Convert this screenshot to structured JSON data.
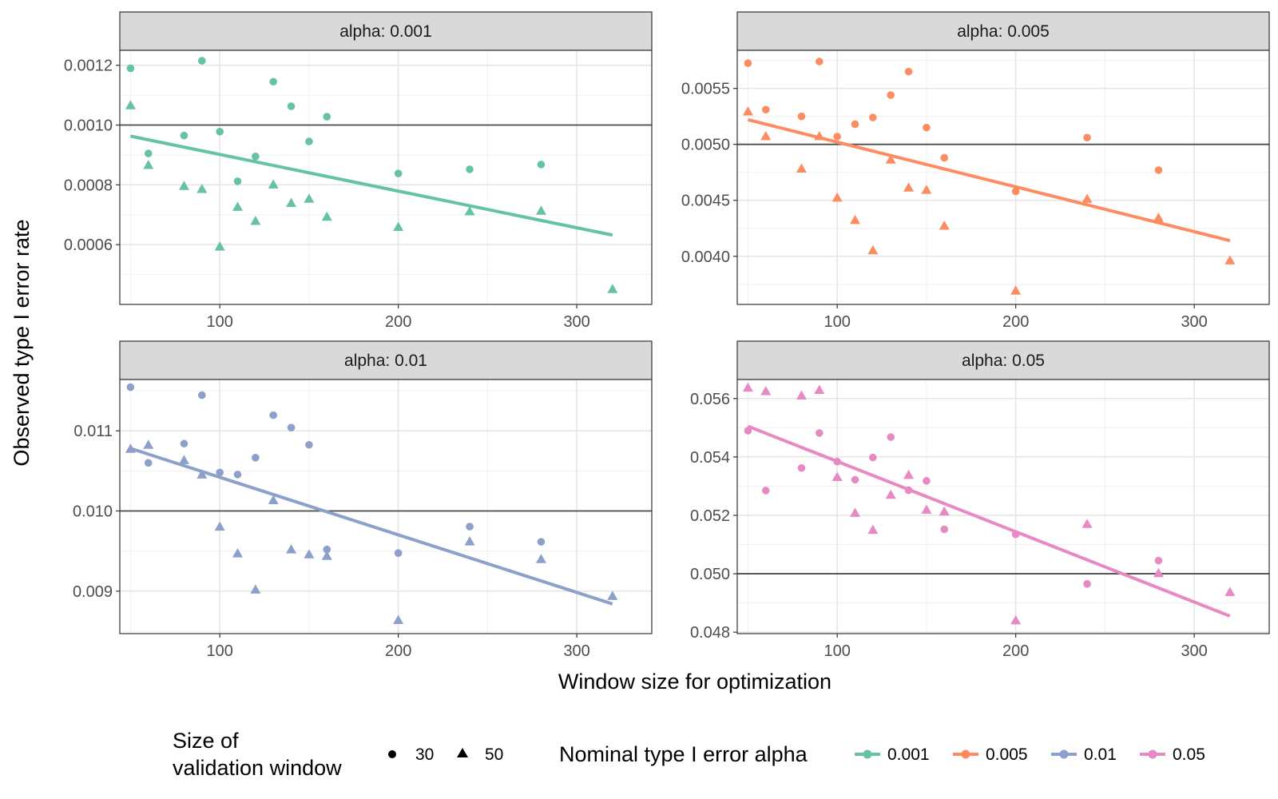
{
  "figure": {
    "xlabel": "Window size for optimization",
    "ylabel": "Observed type I error rate"
  },
  "legend": {
    "shape_title_line1": "Size of",
    "shape_title_line2": "validation window",
    "shape_items": [
      {
        "label": "30",
        "shape": "circle"
      },
      {
        "label": "50",
        "shape": "triangle"
      }
    ],
    "color_title": "Nominal type I error alpha",
    "color_items": [
      {
        "label": "0.001",
        "color": "#66C2A5"
      },
      {
        "label": "0.005",
        "color": "#FC8D62"
      },
      {
        "label": "0.01",
        "color": "#8DA0CB"
      },
      {
        "label": "0.05",
        "color": "#E78AC3"
      }
    ]
  },
  "chart_data": [
    {
      "type": "scatter",
      "title": "alpha: 0.001",
      "color": "#66C2A5",
      "xlim": [
        44,
        342
      ],
      "ylim": [
        0.0004,
        0.00125
      ],
      "x_ticks": [
        100,
        200,
        300
      ],
      "y_ticks": [
        0.0006,
        0.0008,
        0.001,
        0.0012
      ],
      "y_tick_labels": [
        "0.0006",
        "0.0008",
        "0.0010",
        "0.0012"
      ],
      "reference_line": 0.001,
      "trend_line": {
        "x": [
          50,
          320
        ],
        "y": [
          0.000963,
          0.000632
        ]
      },
      "series": [
        {
          "name": "30",
          "shape": "circle",
          "x": [
            50,
            60,
            80,
            90,
            100,
            110,
            120,
            130,
            140,
            150,
            160,
            200,
            240,
            280
          ],
          "y": [
            0.00119,
            0.000905,
            0.000965,
            0.001215,
            0.000978,
            0.000812,
            0.000895,
            0.001145,
            0.001063,
            0.000945,
            0.001028,
            0.000838,
            0.000852,
            0.000868
          ]
        },
        {
          "name": "50",
          "shape": "triangle",
          "x": [
            50,
            60,
            80,
            90,
            100,
            110,
            120,
            130,
            140,
            150,
            160,
            200,
            240,
            280,
            320
          ],
          "y": [
            0.001065,
            0.000865,
            0.000795,
            0.000785,
            0.000592,
            0.000725,
            0.000678,
            0.0008,
            0.000738,
            0.000752,
            0.000692,
            0.000658,
            0.00071,
            0.000712,
            0.00045
          ]
        }
      ]
    },
    {
      "type": "scatter",
      "title": "alpha: 0.005",
      "color": "#FC8D62",
      "xlim": [
        44,
        342
      ],
      "ylim": [
        0.00357,
        0.00584
      ],
      "x_ticks": [
        100,
        200,
        300
      ],
      "y_ticks": [
        0.004,
        0.0045,
        0.005,
        0.0055
      ],
      "y_tick_labels": [
        "0.0040",
        "0.0045",
        "0.0050",
        "0.0055"
      ],
      "reference_line": 0.005,
      "trend_line": {
        "x": [
          50,
          320
        ],
        "y": [
          0.00522,
          0.00414
        ]
      },
      "series": [
        {
          "name": "30",
          "shape": "circle",
          "x": [
            50,
            60,
            80,
            90,
            100,
            110,
            120,
            130,
            140,
            150,
            160,
            200,
            240,
            280
          ],
          "y": [
            0.005725,
            0.00531,
            0.00525,
            0.00574,
            0.00507,
            0.00518,
            0.00524,
            0.00544,
            0.00565,
            0.00515,
            0.00488,
            0.00458,
            0.00506,
            0.00477
          ]
        },
        {
          "name": "50",
          "shape": "triangle",
          "x": [
            50,
            60,
            80,
            90,
            100,
            110,
            120,
            130,
            140,
            150,
            160,
            200,
            240,
            280,
            320
          ],
          "y": [
            0.00529,
            0.00507,
            0.00478,
            0.00507,
            0.00452,
            0.00432,
            0.00405,
            0.00486,
            0.00461,
            0.00459,
            0.00427,
            0.00369,
            0.00451,
            0.00434,
            0.00396
          ]
        }
      ]
    },
    {
      "type": "scatter",
      "title": "alpha: 0.01",
      "color": "#8DA0CB",
      "xlim": [
        44,
        342
      ],
      "ylim": [
        0.00847,
        0.01164
      ],
      "x_ticks": [
        100,
        200,
        300
      ],
      "y_ticks": [
        0.009,
        0.01,
        0.011
      ],
      "y_tick_labels": [
        "0.009",
        "0.010",
        "0.011"
      ],
      "reference_line": 0.01,
      "trend_line": {
        "x": [
          50,
          320
        ],
        "y": [
          0.01078,
          0.00884
        ]
      },
      "series": [
        {
          "name": "30",
          "shape": "circle",
          "x": [
            50,
            60,
            80,
            90,
            100,
            110,
            120,
            130,
            140,
            150,
            160,
            200,
            240,
            280
          ],
          "y": [
            0.011545,
            0.0106,
            0.01084,
            0.011445,
            0.01048,
            0.010455,
            0.010665,
            0.011195,
            0.01104,
            0.010825,
            0.00952,
            0.009475,
            0.009805,
            0.009615
          ]
        },
        {
          "name": "50",
          "shape": "triangle",
          "x": [
            50,
            60,
            80,
            90,
            100,
            110,
            120,
            130,
            140,
            150,
            160,
            200,
            240,
            280,
            320
          ],
          "y": [
            0.01077,
            0.01082,
            0.01063,
            0.01045,
            0.0098,
            0.009465,
            0.009015,
            0.01013,
            0.009515,
            0.009455,
            0.009435,
            0.008635,
            0.009615,
            0.009395,
            0.008935
          ]
        }
      ]
    },
    {
      "type": "scatter",
      "title": "alpha: 0.05",
      "color": "#E78AC3",
      "xlim": [
        44,
        342
      ],
      "ylim": [
        0.04795,
        0.05665
      ],
      "x_ticks": [
        100,
        200,
        300
      ],
      "y_ticks": [
        0.048,
        0.05,
        0.052,
        0.054,
        0.056
      ],
      "y_tick_labels": [
        "0.048",
        "0.050",
        "0.052",
        "0.054",
        "0.056"
      ],
      "reference_line": 0.05,
      "trend_line": {
        "x": [
          50,
          320
        ],
        "y": [
          0.05505,
          0.04855
        ]
      },
      "series": [
        {
          "name": "30",
          "shape": "circle",
          "x": [
            50,
            60,
            80,
            90,
            100,
            110,
            120,
            130,
            140,
            150,
            160,
            200,
            240,
            280
          ],
          "y": [
            0.0549,
            0.05285,
            0.05362,
            0.05482,
            0.05384,
            0.05322,
            0.05398,
            0.05468,
            0.05286,
            0.05318,
            0.05152,
            0.05135,
            0.04965,
            0.05045
          ]
        },
        {
          "name": "50",
          "shape": "triangle",
          "x": [
            50,
            60,
            80,
            90,
            100,
            110,
            120,
            130,
            140,
            150,
            160,
            200,
            240,
            280,
            320
          ],
          "y": [
            0.05636,
            0.05624,
            0.05609,
            0.05628,
            0.0533,
            0.05207,
            0.05149,
            0.05269,
            0.05337,
            0.05218,
            0.05212,
            0.04839,
            0.05169,
            0.05001,
            0.04936
          ]
        }
      ]
    }
  ]
}
